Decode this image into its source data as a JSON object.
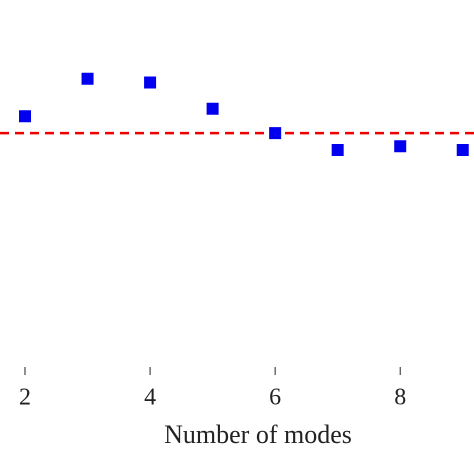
{
  "chart_data": {
    "type": "scatter",
    "x_label": "Number of modes",
    "series": [
      {
        "color": "#0000ee",
        "x": [
          2,
          3,
          4,
          5,
          6,
          7,
          8,
          9
        ],
        "values": [
          0.69,
          0.79,
          0.78,
          0.71,
          0.645,
          0.6,
          0.61,
          0.6
        ]
      }
    ],
    "reference_line": {
      "value": 0.645,
      "color": "#ee0000"
    },
    "xlim": [
      1.6,
      9.18
    ],
    "xticks": [
      2,
      4,
      6,
      8
    ],
    "ylim": [
      0,
      1
    ]
  }
}
